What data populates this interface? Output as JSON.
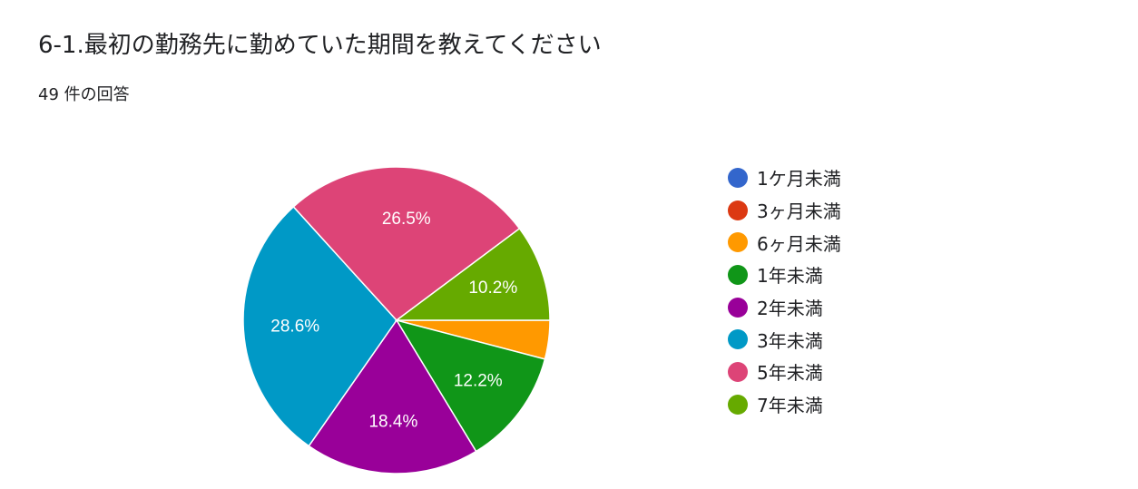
{
  "header": {
    "title": "6-1.最初の勤務先に勤めていた期間を教えてください",
    "response_count": "49 件の回答"
  },
  "chart_data": {
    "type": "pie",
    "categories": [
      "1ケ月未満",
      "3ヶ月未満",
      "6ヶ月未満",
      "1年未満",
      "2年未満",
      "3年未満",
      "5年未満",
      "7年未満"
    ],
    "values": [
      0,
      0,
      2,
      6,
      9,
      14,
      13,
      5
    ],
    "percent_labels": [
      "",
      "",
      "",
      "12.2%",
      "18.4%",
      "28.6%",
      "26.5%",
      "10.2%"
    ],
    "colors": [
      "#3366cc",
      "#dc3912",
      "#ff9900",
      "#109618",
      "#990099",
      "#0099c6",
      "#dd4477",
      "#66aa00"
    ],
    "start": "3 o'clock",
    "direction": "clockwise",
    "legend_position": "right"
  }
}
